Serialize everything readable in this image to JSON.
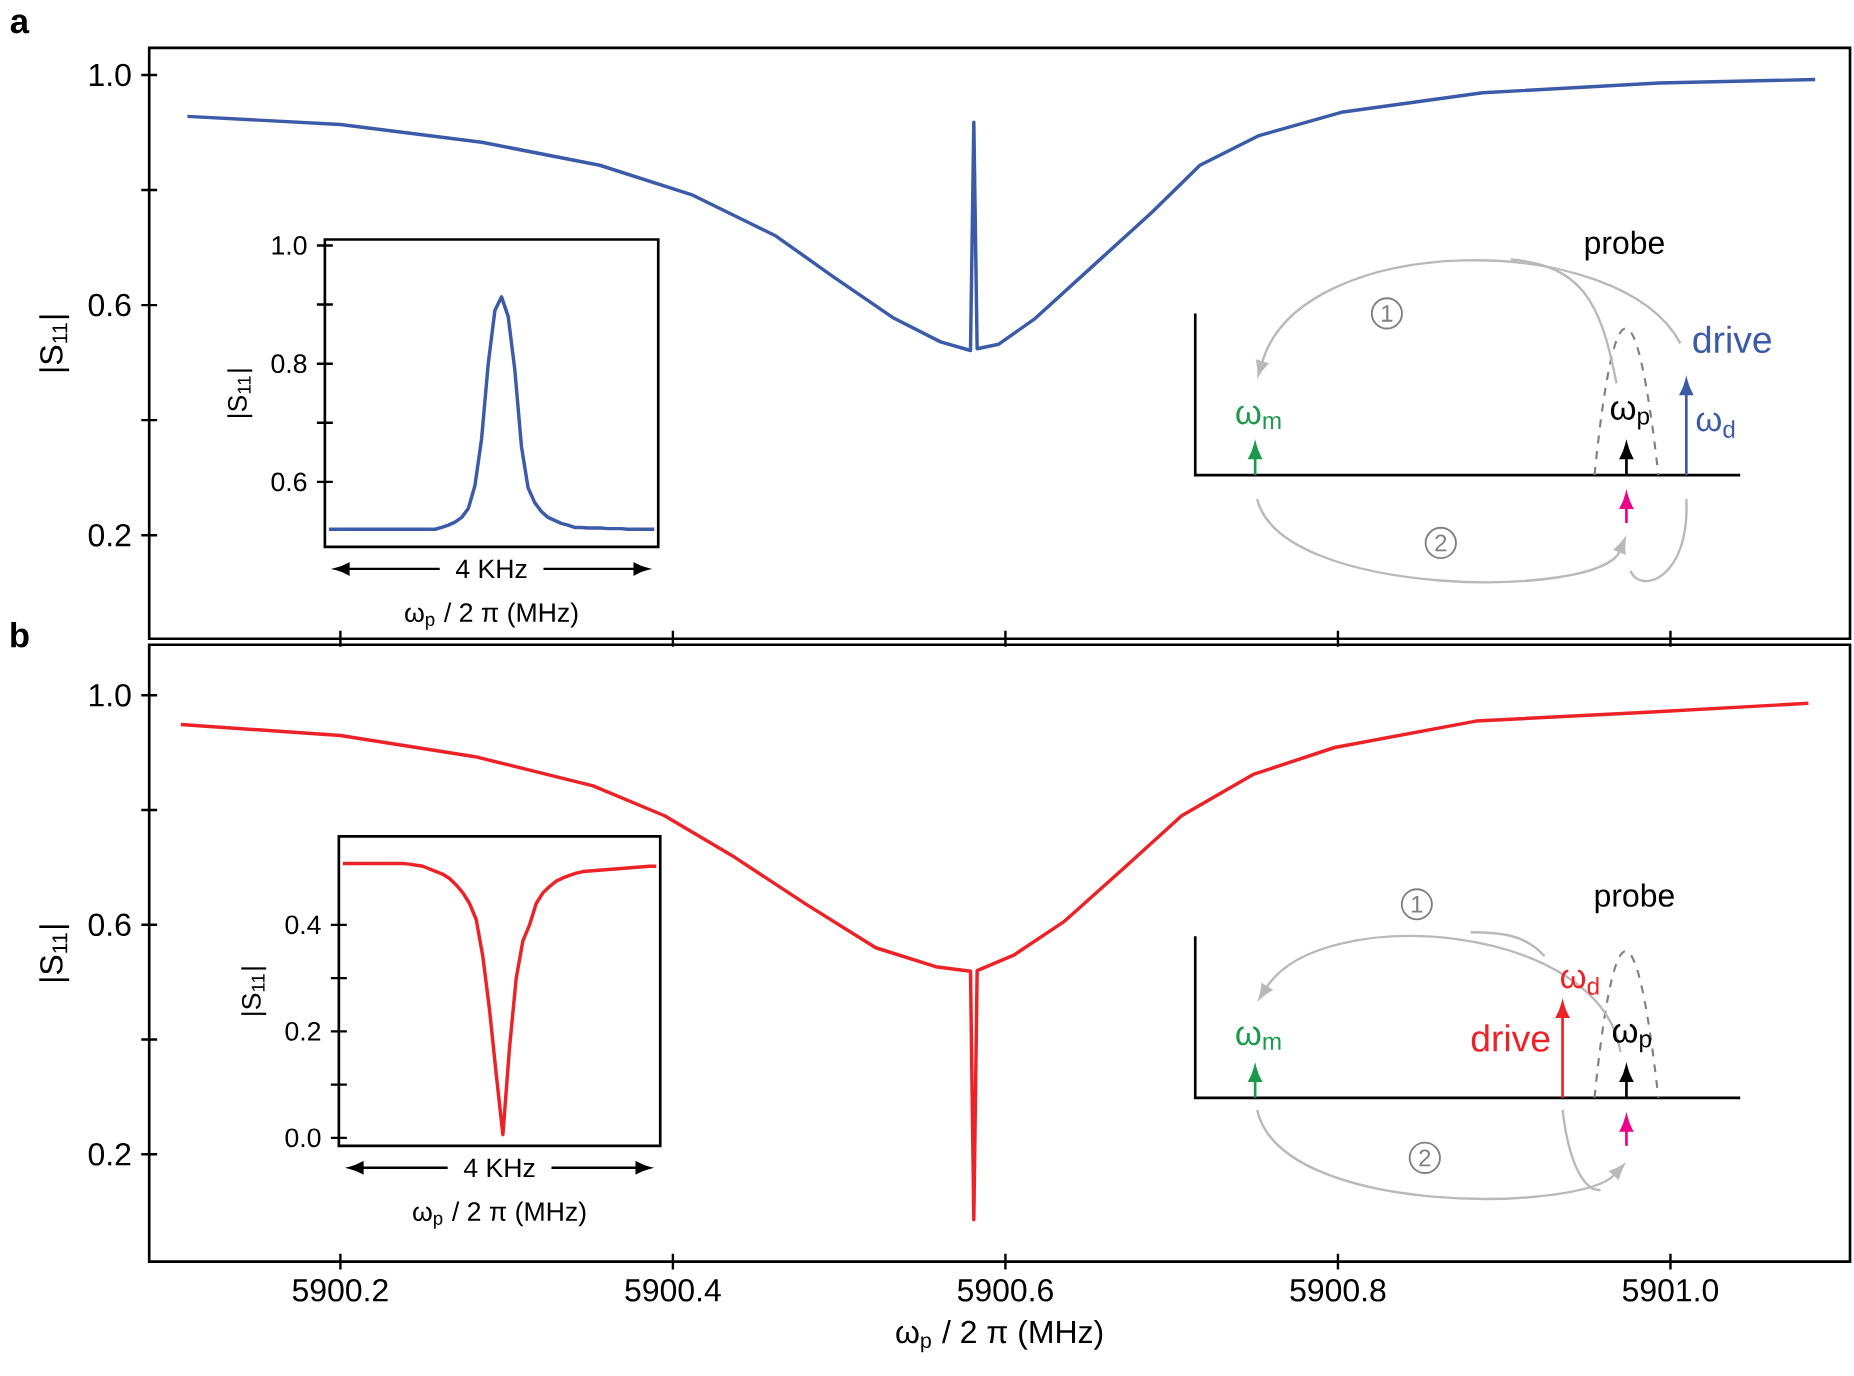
{
  "chart_data": [
    {
      "type": "line",
      "title": "a",
      "ylabel": "|S$_{11}$|",
      "x": [
        5900.108,
        5900.2,
        5900.285,
        5900.356,
        5900.412,
        5900.462,
        5900.497,
        5900.533,
        5900.561,
        5900.579,
        5900.581,
        5900.583,
        5900.596,
        5900.618,
        5900.653,
        5900.688,
        5900.717,
        5900.752,
        5900.802,
        5900.887,
        5900.993,
        5901.087
      ],
      "series": [
        {
          "color": "#3b5aa8",
          "values": [
            0.928,
            0.914,
            0.883,
            0.843,
            0.791,
            0.72,
            0.648,
            0.577,
            0.536,
            0.521,
            0.918,
            0.524,
            0.532,
            0.577,
            0.669,
            0.761,
            0.843,
            0.894,
            0.935,
            0.969,
            0.986,
            0.992
          ]
        }
      ],
      "xlim": [
        5900.085,
        5901.108
      ],
      "ylim": [
        0.02,
        1.047
      ],
      "xticks": [
        5900.2,
        5900.4,
        5900.6,
        5900.8,
        5901
      ],
      "yticks": [
        0.2,
        {
          "value": 0.4,
          "label": null
        },
        0.6,
        {
          "value": 0.8,
          "label": null
        },
        {
          "value": 1,
          "label": "1.0"
        }
      ],
      "tick_labels": "y",
      "annotations": [
        "probe",
        "drive",
        "ω$_{d}$",
        "ω$_{m}$",
        "ω$_{p}$",
        "1",
        "2"
      ]
    },
    {
      "type": "line",
      "xlabel": "ω$_{p}$ / 2 π (MHz)",
      "ylabel": "|S$_{11}$|",
      "categories": [
        null,
        null,
        null,
        null,
        null,
        null,
        null,
        null,
        null,
        null,
        null,
        null,
        null,
        null,
        null,
        null,
        null,
        null,
        null,
        null,
        null,
        null,
        null,
        null,
        null,
        null,
        null,
        null,
        null,
        null,
        null,
        null,
        null,
        null,
        null,
        null,
        null,
        null,
        null,
        null,
        null,
        null,
        null,
        null,
        null,
        null,
        null,
        null,
        null,
        null
      ],
      "series": [
        {
          "color": "#3b5aa8",
          "values": [
            0.52,
            0.52,
            0.52,
            0.52,
            0.52,
            0.52,
            0.52,
            0.52,
            0.52,
            0.52,
            0.52,
            0.52,
            0.52,
            0.52,
            0.52,
            0.52,
            0.52,
            0.523,
            0.527,
            0.532,
            0.54,
            0.555,
            0.594,
            0.673,
            0.8,
            0.89,
            0.913,
            0.88,
            0.79,
            0.66,
            0.59,
            0.565,
            0.55,
            0.54,
            0.535,
            0.53,
            0.527,
            0.523,
            0.523,
            0.522,
            0.522,
            0.522,
            0.521,
            0.521,
            0.521,
            0.52,
            0.52,
            0.52,
            0.52,
            0.52
          ]
        }
      ],
      "ylim": [
        0.49,
        1.01
      ],
      "yticks": [
        0.6,
        {
          "value": 0.7,
          "label": null
        },
        0.8,
        {
          "value": 0.9,
          "label": null
        },
        {
          "value": 1,
          "label": "1.0"
        }
      ],
      "annotations": [
        "4 KHz"
      ]
    },
    {
      "type": "line",
      "title": "b",
      "xlabel": "ω$_{p}$ / 2 π (MHz)",
      "ylabel": "|S$_{11}$|",
      "x": [
        5900.104,
        5900.2,
        5900.281,
        5900.352,
        5900.395,
        5900.437,
        5900.48,
        5900.522,
        5900.558,
        5900.579,
        5900.581,
        5900.583,
        5900.605,
        5900.635,
        5900.671,
        5900.706,
        5900.749,
        5900.798,
        5900.883,
        5900.989,
        5901.083
      ],
      "series": [
        {
          "color": "#ec2227",
          "values": [
            0.949,
            0.93,
            0.893,
            0.842,
            0.79,
            0.718,
            0.636,
            0.56,
            0.527,
            0.519,
            0.086,
            0.52,
            0.547,
            0.605,
            0.698,
            0.79,
            0.862,
            0.909,
            0.955,
            0.971,
            0.986
          ]
        }
      ],
      "xlim": [
        5900.085,
        5901.108
      ],
      "ylim": [
        0.013,
        1.088
      ],
      "xticks": [
        5900.2,
        5900.4,
        5900.6,
        5900.8,
        {
          "value": 5901,
          "label": "5901.0"
        }
      ],
      "yticks": [
        0.2,
        {
          "value": 0.4,
          "label": null
        },
        0.6,
        {
          "value": 0.8,
          "label": null
        },
        {
          "value": 1,
          "label": "1.0"
        }
      ],
      "annotations": [
        "probe",
        "drive",
        "ω$_{d}$",
        "ω$_{m}$",
        "ω$_{p}$",
        "1",
        "2"
      ]
    },
    {
      "type": "line",
      "xlabel": "ω$_{p}$ / 2 π (MHz)",
      "ylabel": "|S$_{11}$|",
      "categories": [
        null,
        null,
        null,
        null,
        null,
        null,
        null,
        null,
        null,
        null,
        null,
        null,
        null,
        null,
        null,
        null,
        null,
        null,
        null,
        null,
        null,
        null,
        null,
        null,
        null,
        null,
        null,
        null,
        null,
        null,
        null,
        null,
        null,
        null,
        null,
        null,
        null,
        null,
        null,
        null,
        null,
        null,
        null,
        null,
        null,
        null,
        null,
        null
      ],
      "series": [
        {
          "color": "#ec2227",
          "values": [
            0.515,
            0.515,
            0.515,
            0.515,
            0.515,
            0.515,
            0.515,
            0.515,
            0.515,
            0.515,
            0.514,
            0.512,
            0.51,
            0.505,
            0.5,
            0.495,
            0.487,
            0.475,
            0.46,
            0.44,
            0.41,
            0.34,
            0.24,
            0.12,
            0.006,
            0.17,
            0.3,
            0.37,
            0.4,
            0.44,
            0.46,
            0.472,
            0.482,
            0.488,
            0.493,
            0.497,
            0.5,
            0.501,
            0.502,
            0.503,
            0.504,
            0.505,
            0.506,
            0.507,
            0.508,
            0.509,
            0.51,
            0.51
          ]
        }
      ],
      "ylim": [
        -0.015,
        0.566
      ],
      "yticks": [
        {
          "value": 0,
          "label": "0.0"
        },
        {
          "value": 0.1,
          "label": null
        },
        0.2,
        {
          "value": 0.3,
          "label": null
        },
        0.4
      ],
      "annotations": [
        "4 KHz"
      ]
    }
  ]
}
